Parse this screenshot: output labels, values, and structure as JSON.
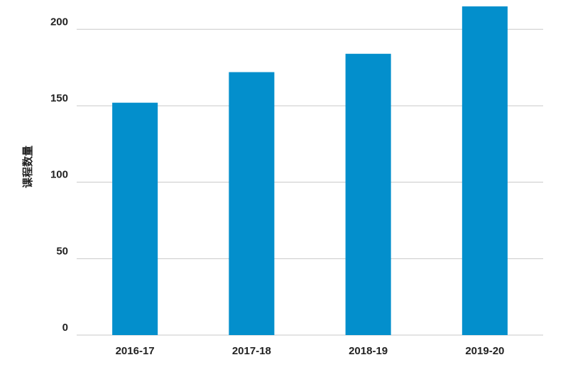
{
  "chart_data": {
    "type": "bar",
    "y_label": "课程数量",
    "categories": [
      "2016-17",
      "2017-18",
      "2018-19",
      "2019-20"
    ],
    "values": [
      152,
      172,
      184,
      215
    ],
    "color": "#038fcc",
    "ylim": [
      0,
      215
    ],
    "yticks": [
      0,
      50,
      100,
      150,
      200
    ],
    "grid": true
  }
}
